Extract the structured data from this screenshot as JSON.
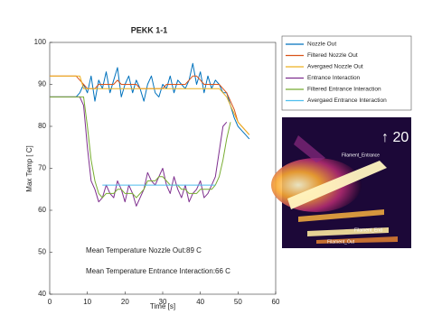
{
  "chart_data": {
    "type": "line",
    "title": "PEKK 1-1",
    "x_label": "Time [s]",
    "y_label": "Max Temp [ C]",
    "xlim": [
      0,
      60
    ],
    "xticks": [
      0,
      10,
      20,
      30,
      40,
      50,
      60
    ],
    "ylim": [
      40,
      100
    ],
    "yticks": [
      40,
      50,
      60,
      70,
      80,
      90,
      100
    ],
    "legend_position": "outside-right",
    "annotations": [
      "Mean Temperature Nozzle Out:89  C",
      "Mean Temperature Entrance Interaction:66  C"
    ],
    "inset_labels": [
      "Filament_Entrance",
      "Filament_End",
      "Filament_Out",
      "↑ 20"
    ],
    "x": [
      0,
      1,
      2,
      3,
      4,
      5,
      6,
      7,
      8,
      9,
      10,
      11,
      12,
      13,
      14,
      15,
      16,
      17,
      18,
      19,
      20,
      21,
      22,
      23,
      24,
      25,
      26,
      27,
      28,
      29,
      30,
      31,
      32,
      33,
      34,
      35,
      36,
      37,
      38,
      39,
      40,
      41,
      42,
      43,
      44,
      45,
      46,
      47,
      48,
      49,
      50,
      51,
      52,
      53
    ],
    "series": [
      {
        "name": "Nozzle Out",
        "color": "#0072bd",
        "values": [
          87,
          87,
          87,
          87,
          87,
          87,
          87,
          87,
          88,
          90,
          88,
          92,
          86,
          91,
          89,
          93,
          88,
          91,
          94,
          87,
          90,
          92,
          88,
          91,
          89,
          86,
          90,
          92,
          88,
          87,
          90,
          89,
          92,
          88,
          91,
          90,
          89,
          91,
          95,
          90,
          93,
          88,
          92,
          89,
          91,
          90,
          88,
          88,
          85,
          82,
          80,
          79,
          78,
          77
        ]
      },
      {
        "name": "Filtered Nozzle Out",
        "color": "#d95319",
        "values": [
          92,
          92,
          92,
          92,
          92,
          92,
          92,
          92,
          91,
          90,
          89,
          89,
          89,
          90,
          90,
          90,
          90,
          90,
          91,
          90,
          90,
          90,
          90,
          90,
          89,
          89,
          89,
          89,
          89,
          89,
          89,
          90,
          90,
          90,
          90,
          90,
          90,
          91,
          92,
          92,
          91,
          90,
          90,
          90,
          90,
          90,
          89,
          88,
          86,
          84,
          81,
          80,
          79,
          78
        ]
      },
      {
        "name": "Avergaed Nozzle Out",
        "color": "#edb120",
        "values": [
          92,
          92,
          92,
          92,
          92,
          92,
          92,
          92,
          92,
          89,
          89,
          89,
          89,
          89,
          89,
          89,
          89,
          89,
          89,
          89,
          89,
          89,
          89,
          89,
          89,
          89,
          89,
          89,
          89,
          89,
          89,
          89,
          89,
          89,
          89,
          89,
          89,
          89,
          89,
          89,
          89,
          89,
          89,
          89,
          89,
          89,
          88,
          87,
          85,
          83,
          81,
          80,
          79,
          78
        ]
      },
      {
        "name": "Entrance Interaction",
        "color": "#7e2f8e",
        "values": [
          87,
          87,
          87,
          87,
          87,
          87,
          87,
          87,
          87,
          85,
          75,
          67,
          65,
          62,
          63,
          66,
          64,
          63,
          67,
          65,
          62,
          66,
          64,
          61,
          63,
          65,
          69,
          67,
          66,
          68,
          70,
          66,
          64,
          68,
          65,
          63,
          66,
          62,
          64,
          65,
          67,
          63,
          64,
          66,
          68,
          74,
          80,
          81,
          null,
          null,
          null,
          null,
          null,
          null
        ]
      },
      {
        "name": "Filtered Entrance Interaction",
        "color": "#77ac30",
        "values": [
          87,
          87,
          87,
          87,
          87,
          87,
          87,
          87,
          87,
          87,
          80,
          72,
          67,
          64,
          63,
          64,
          64,
          64,
          65,
          65,
          64,
          64,
          64,
          63,
          64,
          65,
          67,
          67,
          67,
          68,
          68,
          67,
          66,
          66,
          66,
          65,
          65,
          64,
          64,
          64,
          65,
          65,
          65,
          65,
          66,
          68,
          72,
          77,
          81,
          null,
          null,
          null,
          null,
          null
        ]
      },
      {
        "name": "Avergaed Entrance Interaction",
        "color": "#4dbeee",
        "values": [
          null,
          null,
          null,
          null,
          null,
          null,
          null,
          null,
          null,
          null,
          null,
          null,
          null,
          null,
          66,
          66,
          66,
          66,
          66,
          66,
          66,
          66,
          66,
          66,
          66,
          66,
          66,
          66,
          66,
          66,
          66,
          66,
          66,
          66,
          66,
          66,
          66,
          66,
          66,
          66,
          66,
          66,
          66,
          66,
          66,
          null,
          null,
          null,
          null,
          null,
          null,
          null,
          null,
          null
        ]
      }
    ]
  }
}
